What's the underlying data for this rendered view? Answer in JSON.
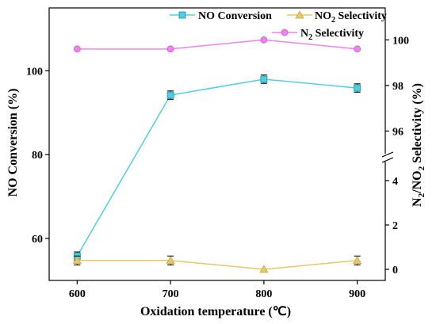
{
  "chart_data": {
    "type": "line",
    "x": [
      600,
      700,
      800,
      900
    ],
    "xlabel": "Oxidation temperature (℃)",
    "ylabel_left": "NO Conversion (%)",
    "ylabel_right": "N2/NO2 Selectivity (%)",
    "xlim": [
      570,
      930
    ],
    "x_ticks": [
      "600",
      "700",
      "800",
      "900"
    ],
    "y_left": {
      "lim": [
        50,
        115
      ],
      "ticks": [
        "60",
        "80",
        "100"
      ]
    },
    "y_right_lower": {
      "lim": [
        -0.5,
        5.0
      ],
      "ticks": [
        "0",
        "2",
        "4"
      ]
    },
    "y_right_upper": {
      "lim": [
        94.8,
        101.4
      ],
      "ticks": [
        "96",
        "98",
        "100"
      ]
    },
    "axis_break": true,
    "grid": false,
    "legend_position": "top-right",
    "legend": {
      "no_conv": "NO Conversion",
      "no2_main": "NO",
      "no2_sub": "2",
      "no2_rest": " Selectivity",
      "n2_main": "N",
      "n2_sub": "2",
      "n2_rest": "  Selectivity"
    },
    "series": [
      {
        "name": "NO Conversion",
        "axis": "left",
        "color": "#4dd0e1",
        "marker": "square",
        "values": [
          55.8,
          94.2,
          98.0,
          95.9
        ],
        "errors": [
          1.0,
          1.0,
          1.0,
          1.0
        ]
      },
      {
        "name": "NO2 Selectivity",
        "axis": "right-lower",
        "color": "#e6c86a",
        "marker": "triangle",
        "values": [
          0.4,
          0.4,
          0.0,
          0.4
        ],
        "errors": [
          0.2,
          0.2,
          0,
          0.2
        ]
      },
      {
        "name": "N2 Selectivity",
        "axis": "right-upper",
        "color": "#ee82ee",
        "marker": "circle",
        "values": [
          99.6,
          99.6,
          100.0,
          99.6
        ],
        "errors": [
          0,
          0,
          0,
          0
        ]
      }
    ]
  }
}
